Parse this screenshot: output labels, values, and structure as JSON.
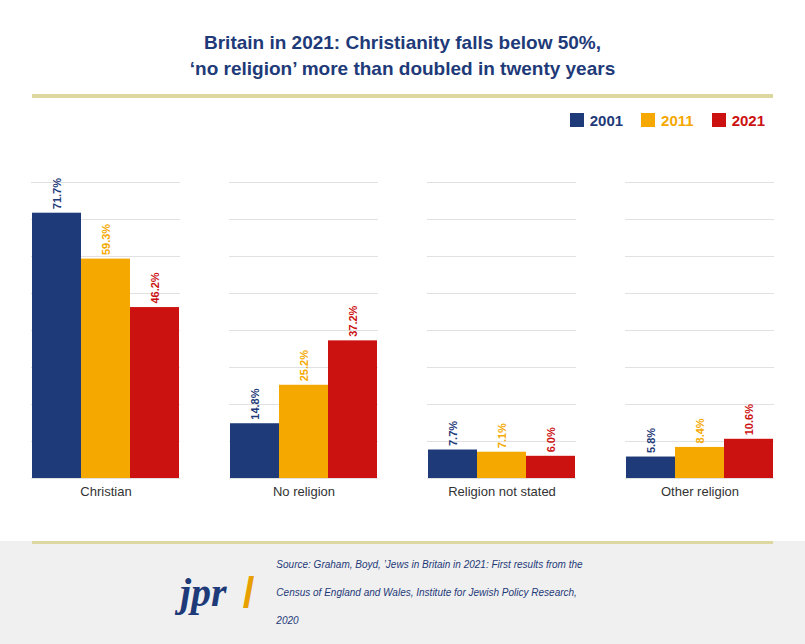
{
  "chart_data": {
    "type": "bar",
    "title": "Britain in 2021: Christianity falls below 50%,",
    "subtitle": "‘no religion’ more than doubled in twenty years",
    "categories": [
      "Christian",
      "No religion",
      "Religion not stated",
      "Other religion"
    ],
    "series": [
      {
        "name": "2001",
        "color": "#1e3a78",
        "values": [
          71.7,
          14.8,
          7.7,
          5.8
        ],
        "value_labels": [
          "71.7%",
          "14.8%",
          "7.7%",
          "5.8%"
        ]
      },
      {
        "name": "2011",
        "color": "#f5a800",
        "values": [
          59.3,
          25.2,
          7.1,
          8.4
        ],
        "value_labels": [
          "59.3%",
          "25.2%",
          "7.1%",
          "8.4%"
        ]
      },
      {
        "name": "2021",
        "color": "#cc1111",
        "values": [
          46.2,
          37.2,
          6.0,
          10.6
        ],
        "value_labels": [
          "46.2%",
          "37.2%",
          "6.0%",
          "10.6%"
        ]
      }
    ],
    "ylim": [
      0,
      80
    ],
    "yticks": [
      0,
      10,
      20,
      30,
      40,
      50,
      60,
      70,
      80
    ],
    "grid": true,
    "legend": "upper right",
    "data_labels": true,
    "tick_labels": "x",
    "annotations": [
      "jpr",
      "/",
      "Source: Graham, Boyd, ’Jews in Britain in 2021: First results from the",
      "Census of England and Wales, Institute for Jewish Policy Research,",
      "2020"
    ]
  }
}
